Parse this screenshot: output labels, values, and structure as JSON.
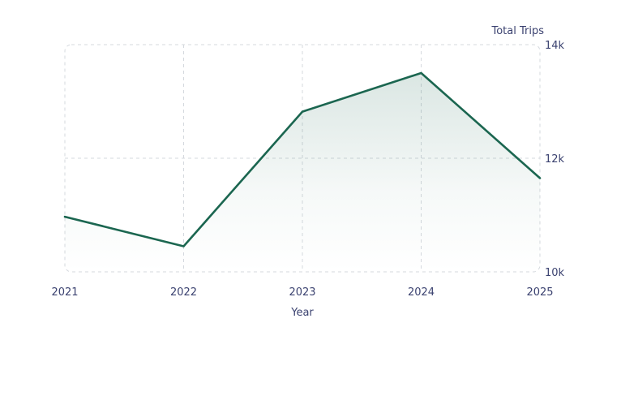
{
  "chart_data": {
    "type": "area",
    "x": [
      "2021",
      "2022",
      "2023",
      "2024",
      "2025"
    ],
    "series": [
      {
        "values": [
          10970,
          10450,
          12820,
          13500,
          11650
        ]
      }
    ],
    "xlabel": "Year",
    "ylabel": "Total Trips",
    "ylim": [
      10000,
      14000
    ],
    "yticks": [
      "10k",
      "12k",
      "14k"
    ],
    "grid": true,
    "y_axis_position": "right",
    "legend": "none",
    "colors": {
      "line": "#1b6650",
      "fill": "#1b6650",
      "grid": "#d5d9de",
      "text": "#3b4270"
    }
  }
}
